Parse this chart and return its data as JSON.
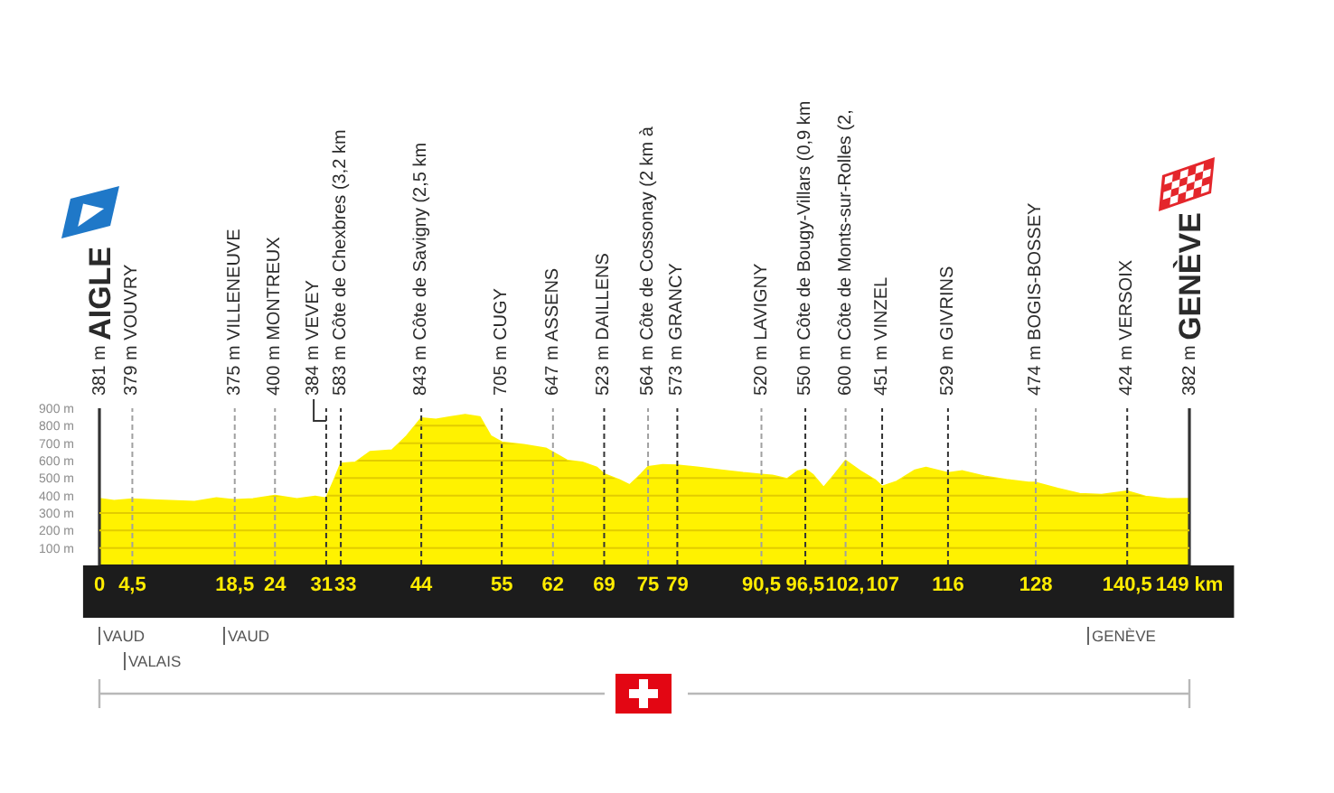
{
  "chart_data": {
    "type": "area",
    "x": [
      0,
      2,
      4.5,
      8,
      13,
      16,
      18.5,
      21,
      24,
      27,
      29.5,
      31,
      32,
      33,
      35,
      37,
      40,
      42,
      44,
      46,
      48,
      50,
      52,
      53.5,
      55,
      58,
      61,
      62,
      64,
      66,
      68,
      69,
      71,
      72.5,
      74,
      75,
      77,
      79,
      82,
      85,
      88,
      90.5,
      92,
      94,
      95.5,
      96.5,
      97.5,
      99,
      100.5,
      102,
      104,
      106,
      107,
      109,
      111.5,
      113,
      116,
      118,
      121,
      124,
      127,
      128,
      131,
      134,
      137,
      140.5,
      143,
      146,
      149
    ],
    "series": [
      {
        "color": "#fff200",
        "values": [
          381,
          370,
          379,
          372,
          365,
          385,
          375,
          380,
          400,
          380,
          395,
          384,
          480,
          583,
          590,
          650,
          660,
          740,
          843,
          835,
          850,
          862,
          850,
          740,
          705,
          690,
          670,
          647,
          600,
          590,
          560,
          523,
          490,
          460,
          520,
          564,
          575,
          573,
          560,
          545,
          530,
          520,
          515,
          495,
          540,
          550,
          520,
          445,
          520,
          600,
          540,
          490,
          451,
          480,
          545,
          560,
          529,
          540,
          510,
          490,
          475,
          474,
          440,
          410,
          405,
          424,
          395,
          380,
          382
        ]
      }
    ],
    "xlim": [
      0,
      149
    ],
    "xticks": [
      0,
      {
        "value": 4.5,
        "label": "4,5"
      },
      {
        "value": 18.5,
        "label": "18,5"
      },
      24,
      31,
      33,
      44,
      55,
      62,
      69,
      75,
      79,
      {
        "value": 90.5,
        "label": "90,5"
      },
      {
        "value": 96.5,
        "label": "96,5"
      },
      {
        "value": 102,
        "label": "102,"
      },
      107,
      116,
      128,
      {
        "value": 140.5,
        "label": "140,5"
      },
      {
        "value": 149,
        "label": "149 km"
      }
    ],
    "ylim": [
      0,
      900
    ],
    "yticks": [
      {
        "value": 100,
        "label": "100 m"
      },
      {
        "value": 200,
        "label": "200 m"
      },
      {
        "value": 300,
        "label": "300 m"
      },
      {
        "value": 400,
        "label": "400 m"
      },
      {
        "value": 500,
        "label": "500 m"
      },
      {
        "value": 600,
        "label": "600 m"
      },
      {
        "value": 700,
        "label": "700 m"
      },
      {
        "value": 800,
        "label": "800 m"
      },
      {
        "value": 900,
        "label": "900 m"
      }
    ],
    "grid": "y",
    "ref_lines": [
      {
        "axis": "x",
        "value": 0,
        "label": "381 m AIGLE",
        "line_style": "solid",
        "color": "#333333"
      },
      {
        "axis": "x",
        "value": 4.5,
        "label": "379 m VOUVRY",
        "line_style": "dashed",
        "color": "#a0a0a0"
      },
      {
        "axis": "x",
        "value": 18.5,
        "label": "375 m VILLENEUVE",
        "line_style": "dashed",
        "color": "#a0a0a0"
      },
      {
        "axis": "x",
        "value": 24,
        "label": "400 m MONTREUX",
        "line_style": "dashed",
        "color": "#a0a0a0"
      },
      {
        "axis": "x",
        "value": 31,
        "label": "384 m VEVEY",
        "line_style": "dashed",
        "color": "#333333"
      },
      {
        "axis": "x",
        "value": 33,
        "label": "583 m Côte de Chexbres (3,2 km",
        "line_style": "dashed",
        "color": "#333333"
      },
      {
        "axis": "x",
        "value": 44,
        "label": "843 m Côte de Savigny (2,5 km",
        "line_style": "dashed",
        "color": "#333333"
      },
      {
        "axis": "x",
        "value": 55,
        "label": "705 m CUGY",
        "line_style": "dashed",
        "color": "#333333"
      },
      {
        "axis": "x",
        "value": 62,
        "label": "647 m ASSENS",
        "line_style": "dashed",
        "color": "#a0a0a0"
      },
      {
        "axis": "x",
        "value": 69,
        "label": "523 m DAILLENS",
        "line_style": "dashed",
        "color": "#333333"
      },
      {
        "axis": "x",
        "value": 75,
        "label": "564 m Côte de Cossonay (2 km à",
        "line_style": "dashed",
        "color": "#a0a0a0"
      },
      {
        "axis": "x",
        "value": 79,
        "label": "573 m GRANCY",
        "line_style": "dashed",
        "color": "#333333"
      },
      {
        "axis": "x",
        "value": 90.5,
        "label": "520 m LAVIGNY",
        "line_style": "dashed",
        "color": "#a0a0a0"
      },
      {
        "axis": "x",
        "value": 96.5,
        "label": "550 m Côte de Bougy-Villars (0,9 km",
        "line_style": "dashed",
        "color": "#333333"
      },
      {
        "axis": "x",
        "value": 102,
        "label": "600 m Côte de Monts-sur-Rolles (2,",
        "line_style": "dashed",
        "color": "#a0a0a0"
      },
      {
        "axis": "x",
        "value": 107,
        "label": "451 m VINZEL",
        "line_style": "dashed",
        "color": "#333333"
      },
      {
        "axis": "x",
        "value": 116,
        "label": "529 m GIVRINS",
        "line_style": "dashed",
        "color": "#333333"
      },
      {
        "axis": "x",
        "value": 128,
        "label": "474 m BOGIS-BOSSEY",
        "line_style": "dashed",
        "color": "#a0a0a0"
      },
      {
        "axis": "x",
        "value": 140.5,
        "label": "424 m VERSOIX",
        "line_style": "dashed",
        "color": "#333333"
      },
      {
        "axis": "x",
        "value": 149,
        "label": "382 m GENÈVE",
        "line_style": "solid",
        "color": "#333333"
      }
    ],
    "annotations": [
      "VAUD",
      "VALAIS",
      "VAUD",
      "GENÈVE"
    ]
  }
}
